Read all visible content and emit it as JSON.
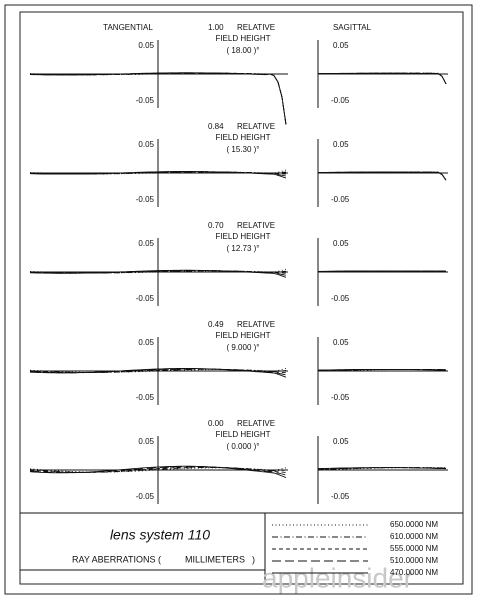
{
  "headers": {
    "tangential": "TANGENTIAL",
    "sagittal": "SAGITTAL"
  },
  "panels": [
    {
      "field": "1.00",
      "relative": "RELATIVE",
      "field_height": "FIELD HEIGHT",
      "angle": "( 18.00 )°",
      "tangential_ticks": [
        "0.05",
        "-0.05"
      ],
      "sagittal_ticks": [
        "0.05",
        "-0.05"
      ]
    },
    {
      "field": "0.84",
      "relative": "RELATIVE",
      "field_height": "FIELD HEIGHT",
      "angle": "( 15.30 )°",
      "tangential_ticks": [
        "0.05",
        "-0.05"
      ],
      "sagittal_ticks": [
        "0.05",
        "-0.05"
      ]
    },
    {
      "field": "0.70",
      "relative": "RELATIVE",
      "field_height": "FIELD HEIGHT",
      "angle": "( 12.73 )°",
      "tangential_ticks": [
        "0.05",
        "-0.05"
      ],
      "sagittal_ticks": [
        "0.05",
        "-0.05"
      ]
    },
    {
      "field": "0.49",
      "relative": "RELATIVE",
      "field_height": "FIELD HEIGHT",
      "angle": "( 9.000 )°",
      "tangential_ticks": [
        "0.05",
        "-0.05"
      ],
      "sagittal_ticks": [
        "0.05",
        "-0.05"
      ]
    },
    {
      "field": "0.00",
      "relative": "RELATIVE",
      "field_height": "FIELD HEIGHT",
      "angle": "( 0.000 )°",
      "tangential_ticks": [
        "0.05",
        "-0.05"
      ],
      "sagittal_ticks": [
        "0.05",
        "-0.05"
      ]
    }
  ],
  "legend": [
    "650.0000 NM",
    "610.0000 NM",
    "555.0000 NM",
    "510.0000 NM",
    "470.0000 NM"
  ],
  "footer": {
    "title": "lens system 110",
    "label": "RAY ABERRATIONS (",
    "units": "MILLIMETERS",
    "close": ")"
  },
  "watermark": "appleinsider"
}
